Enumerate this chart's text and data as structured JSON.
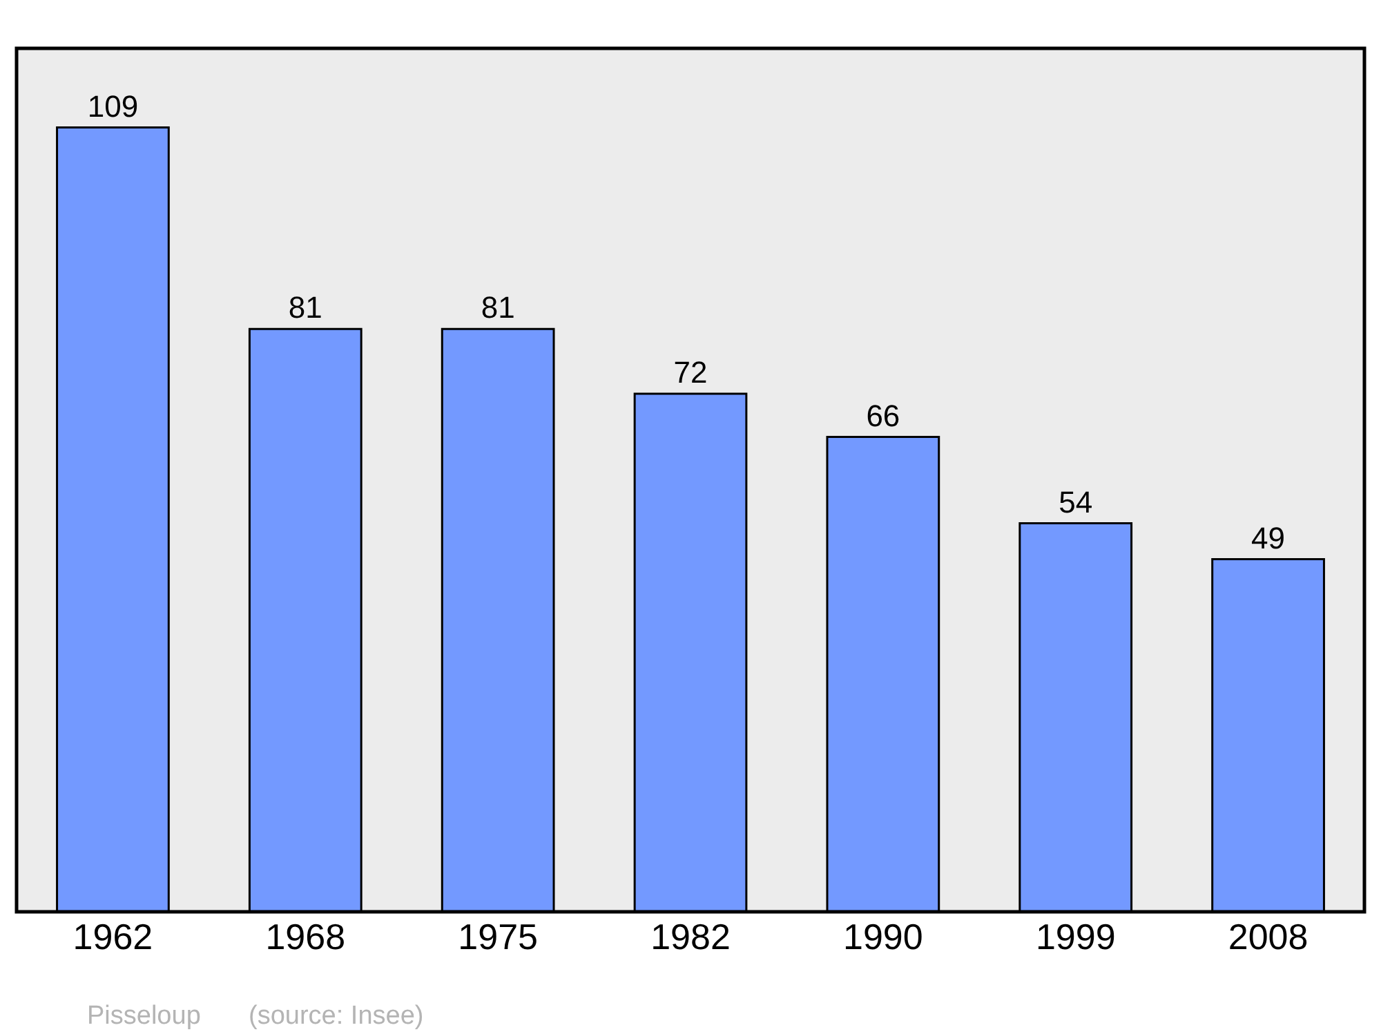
{
  "chart_data": {
    "type": "bar",
    "categories": [
      "1962",
      "1968",
      "1975",
      "1982",
      "1990",
      "1999",
      "2008"
    ],
    "values": [
      109,
      81,
      81,
      72,
      66,
      54,
      49
    ],
    "color": "#7399ff",
    "ylim": [
      0,
      120
    ],
    "tick_labels": "x",
    "data_labels": true,
    "grid": false,
    "legend": false,
    "annotations": [
      "Pisseloup",
      "(source: Insee)"
    ]
  }
}
